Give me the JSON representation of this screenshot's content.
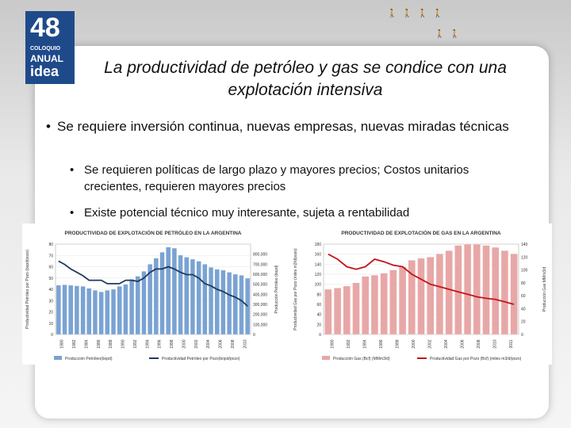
{
  "logo": {
    "number": "48",
    "line1": "COLOQUIO",
    "line2": "ANUAL",
    "line3": "idea"
  },
  "slide": {
    "title": "La productividad de petróleo y gas se condice con una explotación intensiva",
    "bullet1": "Se requiere inversión continua, nuevas empresas, nuevas miradas técnicas",
    "bullet2": "Se requieren políticas de largo plazo y mayores precios; Costos unitarios crecientes, requieren mayores precios",
    "bullet3": "Existe potencial técnico muy interesante, sujeta a rentabilidad"
  },
  "chart_data": [
    {
      "type": "bar",
      "title": "PRODUCTIVIDAD DE EXPLOTACIÓN DE PETRÓLEO EN LA ARGENTINA",
      "ylabel_left": "Productividad Petróleo por Pozo (bopd/pozo)",
      "ylabel_right": "Producción Petróleo (bopd)",
      "ylim_left": [
        0,
        80
      ],
      "ylim_right": [
        0,
        900000
      ],
      "yticks_left": [
        "0",
        "10",
        "20",
        "30",
        "40",
        "50",
        "60",
        "70",
        "80"
      ],
      "yticks_right": [
        "0",
        "100,000",
        "200,000",
        "300,000",
        "400,000",
        "500,000",
        "600,000",
        "700,000",
        "800,000"
      ],
      "xticks": [
        "1980",
        "1982",
        "1984",
        "1986",
        "1988",
        "1990",
        "1992",
        "1994",
        "1996",
        "1998",
        "2000",
        "2002",
        "2004",
        "2006",
        "2008",
        "2010"
      ],
      "categories": [
        "1980",
        "1981",
        "1982",
        "1983",
        "1984",
        "1985",
        "1986",
        "1987",
        "1988",
        "1989",
        "1990",
        "1991",
        "1992",
        "1993",
        "1994",
        "1995",
        "1996",
        "1997",
        "1998",
        "1999",
        "2000",
        "2001",
        "2002",
        "2003",
        "2004",
        "2005",
        "2006",
        "2007",
        "2008",
        "2009",
        "2010",
        "2011"
      ],
      "series": [
        {
          "name": "Producción Petróleo(bopd)",
          "axis": "right",
          "values": [
            490000,
            495000,
            490000,
            485000,
            480000,
            460000,
            440000,
            425000,
            440000,
            450000,
            480000,
            500000,
            550000,
            580000,
            630000,
            700000,
            760000,
            820000,
            870000,
            860000,
            790000,
            770000,
            750000,
            730000,
            700000,
            670000,
            650000,
            640000,
            620000,
            600000,
            590000,
            560000
          ]
        },
        {
          "name": "Productividad Petróleo por Pozo(bopd/pozo)",
          "axis": "left",
          "values": [
            65,
            62,
            58,
            55,
            52,
            48,
            48,
            48,
            45,
            45,
            45,
            48,
            48,
            47,
            50,
            55,
            58,
            58,
            60,
            58,
            55,
            53,
            53,
            50,
            45,
            43,
            40,
            38,
            35,
            33,
            30,
            25
          ]
        }
      ],
      "colors": {
        "bars": "#7aa3d2",
        "line": "#1f3a5f"
      }
    },
    {
      "type": "bar",
      "title": "PRODUCTIVIDAD DE EXPLOTACIÓN DE GAS EN LA ARGENTINA",
      "ylabel_left": "Productividad Gas por Pozo (miles m3/d/pozo)",
      "ylabel_right": "Producción Gas MMm3/d",
      "ylim_left": [
        0,
        180
      ],
      "ylim_right": [
        0,
        140
      ],
      "yticks_left": [
        "0",
        "20",
        "40",
        "60",
        "80",
        "100",
        "120",
        "140",
        "160",
        "180"
      ],
      "yticks_right": [
        "0",
        "20",
        "40",
        "60",
        "80",
        "100",
        "120",
        "140"
      ],
      "xticks": [
        "1990",
        "1992",
        "1994",
        "1996",
        "1998",
        "2000",
        "2002",
        "2004",
        "2006",
        "2008",
        "2010",
        "2011"
      ],
      "categories": [
        "1991",
        "1992",
        "1993",
        "1994",
        "1995",
        "1996",
        "1997",
        "1998",
        "1999",
        "2000",
        "2001",
        "2002",
        "2003",
        "2004",
        "2005",
        "2006",
        "2007",
        "2008",
        "2009",
        "2010",
        "2011"
      ],
      "series": [
        {
          "name": "Producción Gas (Bcf) (MMm3/d)",
          "axis": "right",
          "values": [
            70,
            72,
            75,
            80,
            90,
            92,
            95,
            100,
            105,
            115,
            118,
            120,
            125,
            130,
            138,
            140,
            140,
            138,
            135,
            130,
            125
          ]
        },
        {
          "name": "Productividad Gas por Pozo (Bcf) (miles m3/d/pozo)",
          "axis": "left",
          "values": [
            160,
            150,
            135,
            130,
            135,
            150,
            145,
            138,
            135,
            120,
            110,
            100,
            95,
            90,
            85,
            80,
            75,
            72,
            70,
            65,
            60
          ]
        }
      ],
      "legend_labels": [
        "Producción Gas (Bcf) (MMm3/d)",
        "Productividad Gas por Pozo (Bcf) (miles m3/d/pozo)"
      ],
      "colors": {
        "bars": "#e8a7a7",
        "line": "#c0161b"
      }
    }
  ]
}
